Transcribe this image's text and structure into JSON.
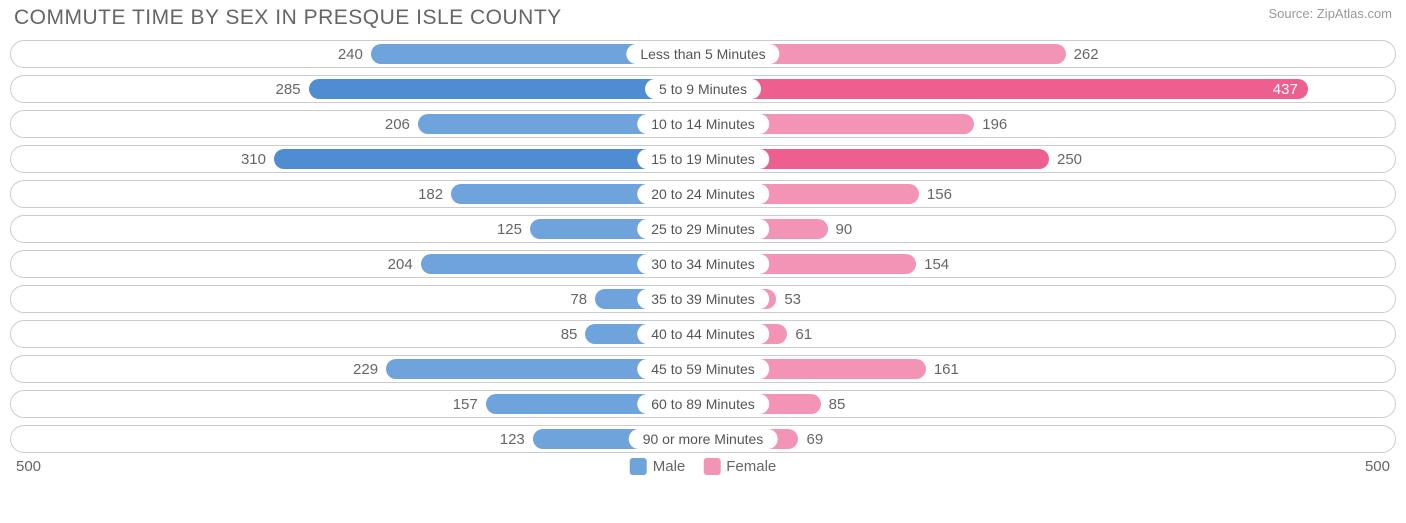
{
  "title": "COMMUTE TIME BY SEX IN PRESQUE ISLE COUNTY",
  "source": "Source: ZipAtlas.com",
  "axis_max": 500,
  "axis_label_left": "500",
  "axis_label_right": "500",
  "colors": {
    "male_base": "#6ea3db",
    "male_dark": "#4f8cd1",
    "female_base": "#f394b6",
    "female_dark": "#ec5f8f",
    "track_border": "#cccccc",
    "text": "#666666",
    "bg": "#ffffff"
  },
  "legend": {
    "male": "Male",
    "female": "Female"
  },
  "rows": [
    {
      "category": "Less than 5 Minutes",
      "male": 240,
      "female": 262,
      "shade": "base"
    },
    {
      "category": "5 to 9 Minutes",
      "male": 285,
      "female": 437,
      "shade": "dark"
    },
    {
      "category": "10 to 14 Minutes",
      "male": 206,
      "female": 196,
      "shade": "base"
    },
    {
      "category": "15 to 19 Minutes",
      "male": 310,
      "female": 250,
      "shade": "dark"
    },
    {
      "category": "20 to 24 Minutes",
      "male": 182,
      "female": 156,
      "shade": "base"
    },
    {
      "category": "25 to 29 Minutes",
      "male": 125,
      "female": 90,
      "shade": "base"
    },
    {
      "category": "30 to 34 Minutes",
      "male": 204,
      "female": 154,
      "shade": "base"
    },
    {
      "category": "35 to 39 Minutes",
      "male": 78,
      "female": 53,
      "shade": "base"
    },
    {
      "category": "40 to 44 Minutes",
      "male": 85,
      "female": 61,
      "shade": "base"
    },
    {
      "category": "45 to 59 Minutes",
      "male": 229,
      "female": 161,
      "shade": "base"
    },
    {
      "category": "60 to 89 Minutes",
      "male": 157,
      "female": 85,
      "shade": "base"
    },
    {
      "category": "90 or more Minutes",
      "male": 123,
      "female": 69,
      "shade": "base"
    }
  ]
}
